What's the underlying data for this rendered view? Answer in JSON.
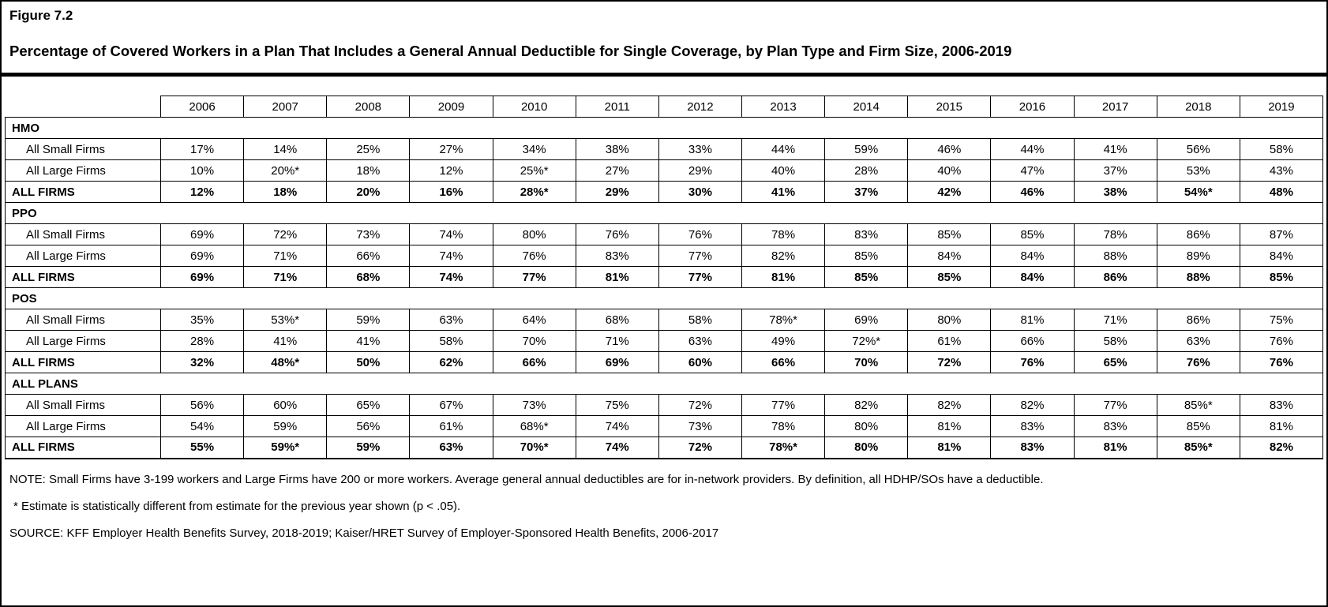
{
  "figure": {
    "label": "Figure 7.2",
    "title": "Percentage of Covered Workers in a Plan That Includes a General Annual Deductible for Single Coverage, by Plan Type and Firm Size, 2006-2019"
  },
  "colors": {
    "text": "#000000",
    "background": "#ffffff",
    "divider": "#000000"
  },
  "notes": {
    "note": "NOTE: Small Firms have 3-199 workers and Large Firms have 200 or more workers. Average general annual deductibles are for in-network providers. By definition, all HDHP/SOs have a deductible.",
    "asterisk": "* Estimate is statistically different from estimate for the previous year shown (p < .05).",
    "source": "SOURCE: KFF Employer Health Benefits Survey, 2018-2019; Kaiser/HRET Survey of Employer-Sponsored Health Benefits, 2006-2017"
  },
  "chart_data": {
    "type": "table",
    "title": "Percentage of Covered Workers in a Plan That Includes a General Annual Deductible for Single Coverage, by Plan Type and Firm Size, 2006-2019",
    "columns": [
      "2006",
      "2007",
      "2008",
      "2009",
      "2010",
      "2011",
      "2012",
      "2013",
      "2014",
      "2015",
      "2016",
      "2017",
      "2018",
      "2019"
    ],
    "sections": [
      {
        "name": "HMO",
        "rows": [
          {
            "label": "All Small Firms",
            "bold": false,
            "values": [
              "17%",
              "14%",
              "25%",
              "27%",
              "34%",
              "38%",
              "33%",
              "44%",
              "59%",
              "46%",
              "44%",
              "41%",
              "56%",
              "58%"
            ]
          },
          {
            "label": "All Large Firms",
            "bold": false,
            "values": [
              "10%",
              "20%*",
              "18%",
              "12%",
              "25%*",
              "27%",
              "29%",
              "40%",
              "28%",
              "40%",
              "47%",
              "37%",
              "53%",
              "43%"
            ]
          },
          {
            "label": "ALL FIRMS",
            "bold": true,
            "values": [
              "12%",
              "18%",
              "20%",
              "16%",
              "28%*",
              "29%",
              "30%",
              "41%",
              "37%",
              "42%",
              "46%",
              "38%",
              "54%*",
              "48%"
            ]
          }
        ]
      },
      {
        "name": "PPO",
        "rows": [
          {
            "label": "All Small Firms",
            "bold": false,
            "values": [
              "69%",
              "72%",
              "73%",
              "74%",
              "80%",
              "76%",
              "76%",
              "78%",
              "83%",
              "85%",
              "85%",
              "78%",
              "86%",
              "87%"
            ]
          },
          {
            "label": "All Large Firms",
            "bold": false,
            "values": [
              "69%",
              "71%",
              "66%",
              "74%",
              "76%",
              "83%",
              "77%",
              "82%",
              "85%",
              "84%",
              "84%",
              "88%",
              "89%",
              "84%"
            ]
          },
          {
            "label": "ALL FIRMS",
            "bold": true,
            "values": [
              "69%",
              "71%",
              "68%",
              "74%",
              "77%",
              "81%",
              "77%",
              "81%",
              "85%",
              "85%",
              "84%",
              "86%",
              "88%",
              "85%"
            ]
          }
        ]
      },
      {
        "name": "POS",
        "rows": [
          {
            "label": "All Small Firms",
            "bold": false,
            "values": [
              "35%",
              "53%*",
              "59%",
              "63%",
              "64%",
              "68%",
              "58%",
              "78%*",
              "69%",
              "80%",
              "81%",
              "71%",
              "86%",
              "75%"
            ]
          },
          {
            "label": "All Large Firms",
            "bold": false,
            "values": [
              "28%",
              "41%",
              "41%",
              "58%",
              "70%",
              "71%",
              "63%",
              "49%",
              "72%*",
              "61%",
              "66%",
              "58%",
              "63%",
              "76%"
            ]
          },
          {
            "label": "ALL FIRMS",
            "bold": true,
            "values": [
              "32%",
              "48%*",
              "50%",
              "62%",
              "66%",
              "69%",
              "60%",
              "66%",
              "70%",
              "72%",
              "76%",
              "65%",
              "76%",
              "76%"
            ]
          }
        ]
      },
      {
        "name": "ALL PLANS",
        "rows": [
          {
            "label": "All Small Firms",
            "bold": false,
            "values": [
              "56%",
              "60%",
              "65%",
              "67%",
              "73%",
              "75%",
              "72%",
              "77%",
              "82%",
              "82%",
              "82%",
              "77%",
              "85%*",
              "83%"
            ]
          },
          {
            "label": "All Large Firms",
            "bold": false,
            "values": [
              "54%",
              "59%",
              "56%",
              "61%",
              "68%*",
              "74%",
              "73%",
              "78%",
              "80%",
              "81%",
              "83%",
              "83%",
              "85%",
              "81%"
            ]
          },
          {
            "label": "ALL FIRMS",
            "bold": true,
            "values": [
              "55%",
              "59%*",
              "59%",
              "63%",
              "70%*",
              "74%",
              "72%",
              "78%*",
              "80%",
              "81%",
              "83%",
              "81%",
              "85%*",
              "82%"
            ]
          }
        ]
      }
    ]
  }
}
